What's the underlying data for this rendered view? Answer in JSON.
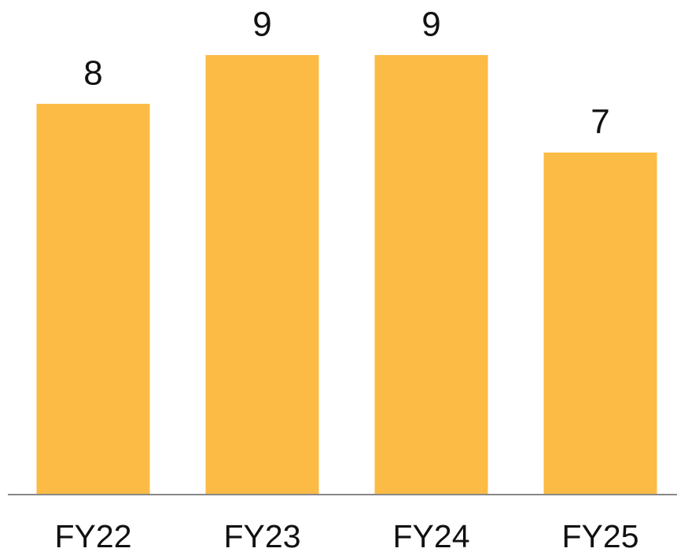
{
  "chart_data": {
    "type": "bar",
    "categories": [
      "FY22",
      "FY23",
      "FY24",
      "FY25"
    ],
    "values": [
      8,
      9,
      9,
      7
    ],
    "color": "#fbbb45",
    "ylim": [
      0,
      9
    ]
  }
}
